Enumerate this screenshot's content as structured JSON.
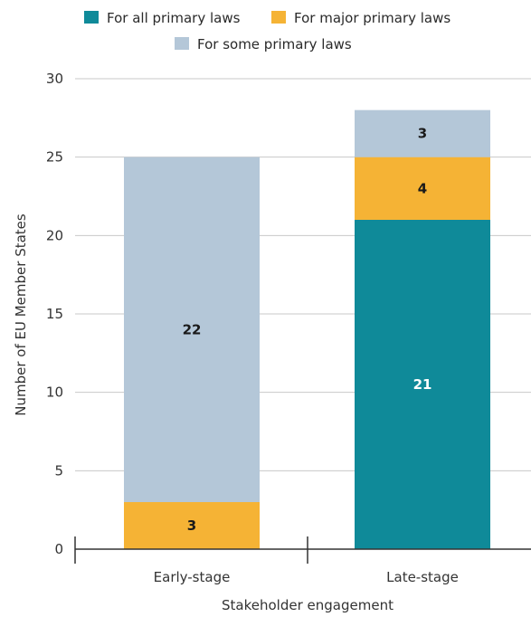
{
  "chart_data": {
    "type": "bar",
    "stacked": true,
    "title": "",
    "xlabel": "Stakeholder engagement",
    "ylabel": "Number of EU Member States",
    "categories": [
      "Early-stage",
      "Late-stage"
    ],
    "series": [
      {
        "name": "For all primary laws",
        "values": [
          0,
          21
        ],
        "color": "#0f8a99",
        "label_color": "#ffffff"
      },
      {
        "name": "For major primary laws",
        "values": [
          3,
          4
        ],
        "color": "#f5b335",
        "label_color": "#1a1a1a"
      },
      {
        "name": "For some primary laws",
        "values": [
          22,
          3
        ],
        "color": "#b4c7d8",
        "label_color": "#1a1a1a"
      }
    ],
    "ylim": [
      0,
      30
    ],
    "yticks": [
      "0",
      "5",
      "10",
      "15",
      "20",
      "25",
      "30"
    ],
    "grid": true,
    "legend_position": "top"
  }
}
